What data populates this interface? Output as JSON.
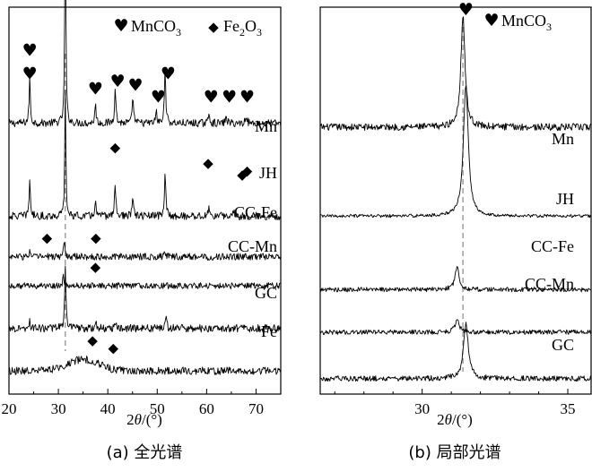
{
  "chart_data": [
    {
      "type": "line",
      "panel": "a",
      "caption": "(a) 全光谱",
      "xlabel_prefix": "2",
      "xlabel_symbol": "θ",
      "xlabel_suffix": "/(°)",
      "xlim": [
        20,
        75
      ],
      "xticks": [
        20,
        30,
        40,
        50,
        60,
        70
      ],
      "legend": [
        {
          "marker": "♥",
          "label_main": "MnCO",
          "label_sub": "3",
          "label_after": ""
        },
        {
          "marker": "◆",
          "label_main": "Fe",
          "label_sub": "2",
          "label_after": "O",
          "label_sub2": "3"
        }
      ],
      "series": [
        {
          "name": "Mn",
          "baseline": 0.7,
          "noise": 0.01,
          "peaks": [
            [
              24.2,
              0.12,
              0.28
            ],
            [
              31.4,
              0.56,
              0.25
            ],
            [
              37.5,
              0.05,
              0.3
            ],
            [
              41.5,
              0.1,
              0.3
            ],
            [
              45.1,
              0.07,
              0.3
            ],
            [
              49.8,
              0.03,
              0.3
            ],
            [
              51.6,
              0.15,
              0.3
            ],
            [
              60.5,
              0.03,
              0.3
            ],
            [
              64.0,
              0.02,
              0.3
            ],
            [
              68.0,
              0.025,
              0.3
            ]
          ],
          "hearts": [
            [
              24.2,
              0.89
            ],
            [
              24.2,
              0.83
            ],
            [
              37.5,
              0.79
            ],
            [
              42.0,
              0.81
            ],
            [
              45.6,
              0.8
            ],
            [
              50.2,
              0.77
            ],
            [
              52.2,
              0.83
            ],
            [
              60.9,
              0.77
            ],
            [
              64.6,
              0.77
            ],
            [
              68.2,
              0.77
            ]
          ]
        },
        {
          "name": "JH",
          "baseline": 0.46,
          "noise": 0.01,
          "peaks": [
            [
              24.2,
              0.1,
              0.28
            ],
            [
              31.4,
              0.32,
              0.25
            ],
            [
              37.5,
              0.04,
              0.3
            ],
            [
              41.5,
              0.09,
              0.3
            ],
            [
              45.1,
              0.05,
              0.3
            ],
            [
              51.6,
              0.12,
              0.3
            ],
            [
              60.5,
              0.025,
              0.3
            ],
            [
              65.5,
              0.02,
              0.3
            ]
          ],
          "diamonds": [
            [
              41.5,
              0.64
            ],
            [
              60.3,
              0.6
            ],
            [
              67.2,
              0.57
            ],
            [
              68.2,
              0.58
            ]
          ]
        },
        {
          "name": "CC-Fe",
          "baseline": 0.355,
          "noise": 0.009,
          "peaks": [
            [
              24.2,
              0.015,
              0.3
            ],
            [
              31.2,
              0.045,
              0.3
            ],
            [
              51.5,
              0.012,
              0.3
            ]
          ],
          "diamonds": [
            [
              27.7,
              0.406
            ],
            [
              37.6,
              0.406
            ]
          ]
        },
        {
          "name": "CC-Mn",
          "baseline": 0.28,
          "noise": 0.008,
          "peaks": [
            [
              31.0,
              0.022,
              0.3
            ]
          ],
          "diamonds": [
            [
              37.5,
              0.331
            ]
          ]
        },
        {
          "name": "GC",
          "baseline": 0.17,
          "noise": 0.01,
          "peaks": [
            [
              24.2,
              0.02,
              0.3
            ],
            [
              31.4,
              0.16,
              0.3
            ],
            [
              37.5,
              0.02,
              0.3
            ],
            [
              41.5,
              0.015,
              0.3
            ],
            [
              51.8,
              0.03,
              0.3
            ]
          ]
        },
        {
          "name": "Fe",
          "baseline": 0.06,
          "noise": 0.01,
          "hump": [
            35.0,
            0.03,
            4.5
          ],
          "diamonds": [
            [
              36.9,
              0.141
            ],
            [
              41.1,
              0.122
            ]
          ]
        }
      ],
      "ref_line_x": 31.4
    },
    {
      "type": "line",
      "panel": "b",
      "caption": "(b) 局部光谱",
      "xlabel_prefix": "2",
      "xlabel_symbol": "θ",
      "xlabel_suffix": "/(°)",
      "xlim": [
        26.5,
        35.8
      ],
      "xticks": [
        30,
        35
      ],
      "legend": [
        {
          "marker": "♥",
          "label_main": "MnCO",
          "label_sub": "3",
          "label_after": ""
        }
      ],
      "series": [
        {
          "name": "Mn",
          "baseline": 0.69,
          "noise": 0.009,
          "peaks": [
            [
              31.4,
              0.29,
              0.17
            ]
          ]
        },
        {
          "name": "JH",
          "baseline": 0.46,
          "noise": 0.004,
          "peaks": [
            [
              31.5,
              0.34,
              0.2
            ]
          ]
        },
        {
          "name": "CC-Fe",
          "baseline": 0.27,
          "noise": 0.006,
          "peaks": [
            [
              31.2,
              0.055,
              0.18
            ]
          ]
        },
        {
          "name": "CC-Mn",
          "baseline": 0.16,
          "noise": 0.006,
          "peaks": [
            [
              31.2,
              0.032,
              0.18
            ]
          ]
        },
        {
          "name": "GC",
          "baseline": 0.04,
          "noise": 0.007,
          "peaks": [
            [
              31.5,
              0.14,
              0.2
            ]
          ]
        }
      ],
      "top_heart_x": 31.5,
      "ref_line_x": 31.4
    }
  ]
}
